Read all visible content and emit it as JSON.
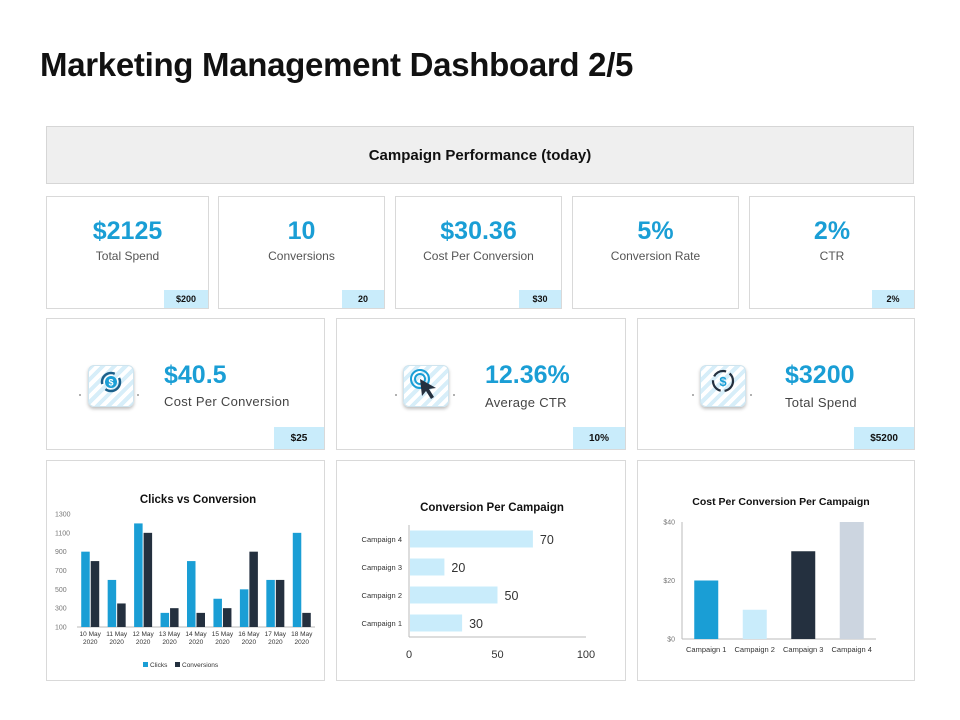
{
  "page": {
    "title": "Marketing Management Dashboard 2/5"
  },
  "banner": {
    "label": "Campaign Performance (today)"
  },
  "kpis": [
    {
      "value": "$2125",
      "label": "Total Spend",
      "tag": "$200"
    },
    {
      "value": "10",
      "label": "Conversions",
      "tag": "20"
    },
    {
      "value": "$30.36",
      "label": "Cost Per Conversion",
      "tag": "$30"
    },
    {
      "value": "5%",
      "label": "Conversion  Rate",
      "tag": ""
    },
    {
      "value": "2%",
      "label": "CTR",
      "tag": "2%"
    }
  ],
  "metrics": [
    {
      "value": "$40.5",
      "label": "Cost Per Conversion",
      "tag": "$25",
      "icon": "dollar-refresh-icon"
    },
    {
      "value": "12.36%",
      "label": "Average CTR",
      "tag": "10%",
      "icon": "cursor-click-icon"
    },
    {
      "value": "$3200",
      "label": "Total Spend",
      "tag": "$5200",
      "icon": "dollar-cycle-icon"
    }
  ],
  "colors": {
    "accent": "#1a9ed5",
    "dark": "#24303f",
    "light_bar": "#c9ecfb",
    "grey_bar": "#ccd5e0"
  },
  "chart_data": [
    {
      "type": "bar",
      "title": "Clicks  vs Conversion",
      "categories": [
        [
          "10 May",
          "2020"
        ],
        [
          "11 May",
          "2020"
        ],
        [
          "12 May",
          "2020"
        ],
        [
          "13 May",
          "2020"
        ],
        [
          "14 May",
          "2020"
        ],
        [
          "15 May",
          "2020"
        ],
        [
          "16 May",
          "2020"
        ],
        [
          "17 May",
          "2020"
        ],
        [
          "18 May",
          "2020"
        ]
      ],
      "series": [
        {
          "name": "Clicks",
          "color": "#1a9ed5",
          "values": [
            900,
            600,
            1200,
            250,
            800,
            400,
            500,
            600,
            1100
          ]
        },
        {
          "name": "Conversions",
          "color": "#24303f",
          "values": [
            800,
            350,
            1100,
            300,
            250,
            300,
            900,
            600,
            250
          ]
        }
      ],
      "yticks": [
        "1300",
        "1100",
        "900",
        "700",
        "500",
        "300",
        "100"
      ],
      "ylim": [
        100,
        1300
      ],
      "legend": "bottom"
    },
    {
      "type": "bar",
      "orientation": "horizontal",
      "title": "Conversion Per Campaign",
      "categories": [
        "Campaign 4",
        "Campaign 3",
        "Campaign 2",
        "Campaign 1"
      ],
      "values": [
        70,
        20,
        50,
        30
      ],
      "value_labels": [
        "70",
        "20",
        "50",
        "30"
      ],
      "xticks": [
        "0",
        "50",
        "100"
      ],
      "xlim": [
        0,
        100
      ]
    },
    {
      "type": "bar",
      "title": "Cost Per Conversion  Per Campaign",
      "categories": [
        "Campaign 1",
        "Campaign 2",
        "Campaign 3",
        "Campaign 4"
      ],
      "values": [
        20,
        10,
        30,
        40
      ],
      "colors": [
        "#1a9ed5",
        "#c9ecfb",
        "#24303f",
        "#ccd5e0"
      ],
      "yticks": [
        "$40",
        "$20",
        "$0"
      ],
      "ylim": [
        0,
        40
      ]
    }
  ]
}
